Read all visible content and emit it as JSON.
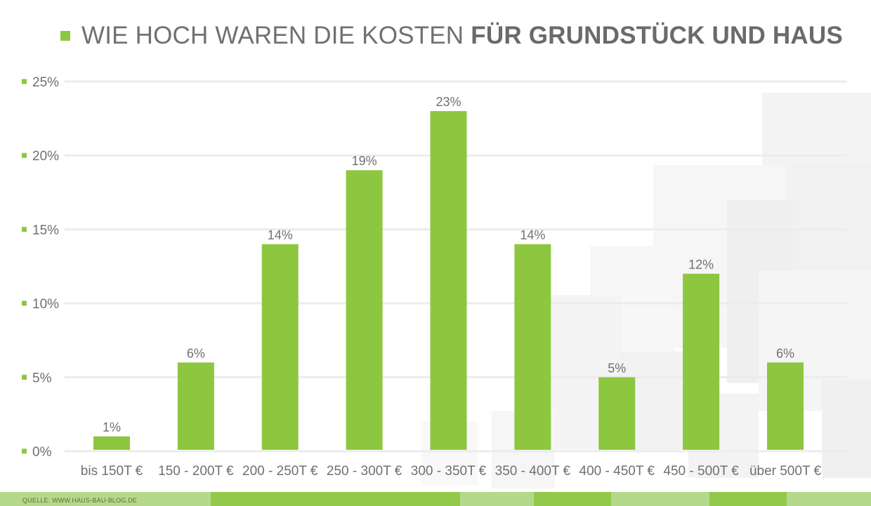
{
  "title": {
    "part_regular": "WIE HOCH WAREN DIE KOSTEN",
    "part_bold": "FÜR GRUNDSTÜCK UND HAUS"
  },
  "source": "QUELLE: WWW.HAUS-BAU-BLOG.DE",
  "colors": {
    "accent": "#8dc63f",
    "text": "#707070",
    "grid": "#ececec",
    "footer_light": "#b5d98a",
    "footer_dark": "#8dc63f"
  },
  "chart_data": {
    "type": "bar",
    "title": "WIE HOCH WAREN DIE KOSTEN FÜR GRUNDSTÜCK UND HAUS",
    "xlabel": "",
    "ylabel": "",
    "categories": [
      "bis 150T €",
      "150 - 200T €",
      "200 - 250T €",
      "250 - 300T €",
      "300 - 350T €",
      "350 - 400T €",
      "400 - 450T €",
      "450 - 500T €",
      "über 500T €"
    ],
    "values": [
      1,
      6,
      14,
      19,
      23,
      14,
      5,
      12,
      6
    ],
    "value_labels": [
      "1%",
      "6%",
      "14%",
      "19%",
      "23%",
      "14%",
      "5%",
      "12%",
      "6%"
    ],
    "ylim": [
      0,
      25
    ],
    "yticks": [
      0,
      5,
      10,
      15,
      20,
      25
    ],
    "ytick_labels": [
      "0%",
      "5%",
      "10%",
      "15%",
      "20%",
      "25%"
    ],
    "grid": true,
    "legend": "none"
  }
}
